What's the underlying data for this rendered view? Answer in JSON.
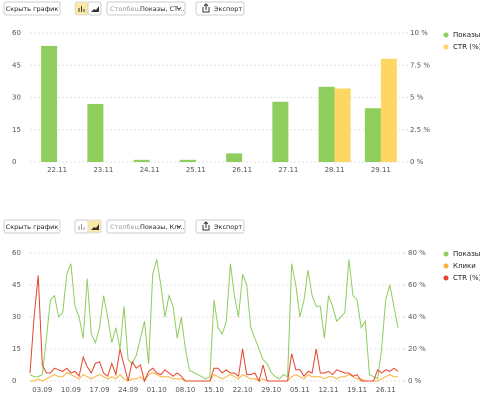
{
  "toolbars": [
    {
      "hide": "Скрыть график",
      "column_label": "Столбец:",
      "column_value": "Показы, CT…",
      "export": "Экспорт"
    },
    {
      "hide": "Скрыть график",
      "column_label": "Столбец:",
      "column_value": "Показы, Кл…",
      "export": "Экспорт"
    }
  ],
  "chart_data": [
    {
      "type": "bar",
      "categories": [
        "22.11",
        "23.11",
        "24.11",
        "25.11",
        "26.11",
        "27.11",
        "28.11",
        "29.11"
      ],
      "series": [
        {
          "name": "Показы",
          "color": "#8fcd5d",
          "values": [
            54,
            27,
            1,
            1,
            4,
            28,
            35,
            25
          ]
        },
        {
          "name": "CTR (%)",
          "color": "#fdd663",
          "axis": "y2",
          "values": [
            0,
            0,
            0,
            0,
            0,
            0,
            5.7,
            8
          ]
        }
      ],
      "ylim": [
        0,
        60
      ],
      "yticks": [
        0,
        15,
        30,
        45,
        60
      ],
      "y2lim": [
        0,
        10
      ],
      "y2ticks": [
        {
          "value": 0,
          "label": "0 %"
        },
        {
          "value": 2.5,
          "label": "2.5 %"
        },
        {
          "value": 5,
          "label": "5 %"
        },
        {
          "value": 7.5,
          "label": "7.5 %"
        },
        {
          "value": 10,
          "label": "10 %"
        }
      ],
      "grid": true
    },
    {
      "type": "line",
      "categories": [
        null,
        null,
        null,
        "03.09",
        null,
        null,
        null,
        null,
        null,
        null,
        "10.09",
        null,
        null,
        null,
        null,
        null,
        null,
        "17.09",
        null,
        null,
        null,
        null,
        null,
        null,
        "24.09",
        null,
        null,
        null,
        null,
        null,
        null,
        "01.10",
        null,
        null,
        null,
        null,
        null,
        null,
        "08.10",
        null,
        null,
        null,
        null,
        null,
        null,
        "15.10",
        null,
        null,
        null,
        null,
        null,
        null,
        "22.10",
        null,
        null,
        null,
        null,
        null,
        null,
        "29.10",
        null,
        null,
        null,
        null,
        null,
        null,
        "05.11",
        null,
        null,
        null,
        null,
        null,
        null,
        "12.11",
        null,
        null,
        null,
        null,
        null,
        null,
        "19.11",
        null,
        null,
        null,
        null,
        null,
        null,
        "26.11",
        null,
        null,
        null
      ],
      "series": [
        {
          "name": "Показы",
          "color": "#8fcd5d",
          "values": [
            3,
            2,
            2,
            3,
            20,
            38,
            40,
            30,
            32,
            50,
            55,
            35,
            30,
            20,
            48,
            22,
            18,
            25,
            40,
            30,
            18,
            25,
            15,
            35,
            10,
            8,
            12,
            20,
            28,
            8,
            50,
            57,
            45,
            30,
            40,
            35,
            20,
            30,
            15,
            5,
            4,
            3,
            2,
            1,
            2,
            38,
            25,
            22,
            28,
            55,
            40,
            30,
            50,
            45,
            25,
            20,
            15,
            10,
            8,
            4,
            2,
            1,
            3,
            2,
            55,
            45,
            30,
            38,
            52,
            40,
            35,
            35,
            20,
            40,
            35,
            28,
            30,
            32,
            57,
            40,
            38,
            25,
            28,
            3,
            2,
            1,
            15,
            38,
            45,
            35,
            25
          ]
        },
        {
          "name": "Клики",
          "color": "#f9b233",
          "values": [
            0,
            0,
            1,
            0,
            1,
            2,
            3,
            2,
            2,
            4,
            3,
            2,
            1,
            3,
            2,
            1,
            2,
            3,
            2,
            1,
            2,
            1,
            3,
            1,
            0,
            1,
            1,
            2,
            0,
            3,
            4,
            3,
            2,
            2,
            2,
            1,
            1,
            1,
            0,
            0,
            0,
            0,
            0,
            0,
            0,
            3,
            2,
            1,
            2,
            3,
            2,
            1,
            3,
            2,
            1,
            1,
            0,
            1,
            0,
            0,
            0,
            0,
            0,
            0,
            2,
            3,
            2,
            1,
            3,
            2,
            2,
            2,
            1,
            2,
            2,
            1,
            2,
            2,
            3,
            2,
            1,
            1,
            0,
            0,
            0,
            0,
            1,
            2,
            3,
            2,
            2
          ]
        },
        {
          "name": "CTR (%)",
          "color": "#e5432b",
          "axis": "y2",
          "values": [
            5,
            40,
            66,
            10,
            5,
            5,
            8,
            7,
            6,
            8,
            5,
            6,
            3,
            15,
            9,
            5,
            11,
            12,
            5,
            3,
            11,
            4,
            20,
            10,
            0,
            12,
            8,
            10,
            0,
            6,
            8,
            5,
            4,
            7,
            5,
            3,
            5,
            3,
            0,
            0,
            0,
            0,
            0,
            0,
            0,
            8,
            8,
            5,
            7,
            5,
            5,
            3,
            20,
            4,
            4,
            5,
            0,
            10,
            0,
            0,
            0,
            0,
            0,
            0,
            17,
            7,
            7,
            3,
            6,
            5,
            20,
            5,
            5,
            6,
            4,
            7,
            6,
            5,
            5,
            3,
            4,
            0,
            0,
            0,
            0,
            7,
            5,
            7,
            6,
            8,
            6
          ]
        }
      ],
      "ylim": [
        0,
        60
      ],
      "yticks": [
        0,
        15,
        30,
        45,
        60
      ],
      "y2lim": [
        0,
        80
      ],
      "y2ticks": [
        {
          "value": 0,
          "label": "0 %"
        },
        {
          "value": 20,
          "label": "20 %"
        },
        {
          "value": 40,
          "label": "40 %"
        },
        {
          "value": 60,
          "label": "60 %"
        },
        {
          "value": 80,
          "label": "80 %"
        }
      ],
      "grid": true
    }
  ]
}
